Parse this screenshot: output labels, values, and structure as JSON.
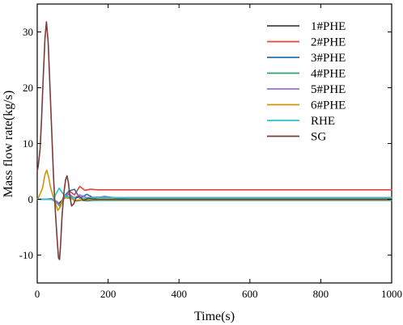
{
  "chart_data": {
    "type": "line",
    "xlabel": "Time(s)",
    "ylabel": "Mass flow rate(kg/s)",
    "xlim": [
      0,
      1000
    ],
    "ylim": [
      -15,
      35
    ],
    "xticks": [
      0,
      200,
      400,
      600,
      800,
      1000
    ],
    "yticks": [
      -10,
      0,
      10,
      20,
      30
    ],
    "grid": false,
    "legend_position": "top-right",
    "series": [
      {
        "name": "1#PHE",
        "color": "#444444",
        "x": [
          0,
          20,
          40,
          50,
          60,
          70,
          80,
          95,
          110,
          130,
          150,
          180,
          220,
          300,
          500,
          1000
        ],
        "y": [
          0,
          0,
          0.1,
          -0.3,
          -0.8,
          -0.2,
          0.6,
          0.2,
          -0.3,
          -0.1,
          0,
          0,
          0,
          0,
          0,
          0
        ]
      },
      {
        "name": "2#PHE",
        "color": "#e8413c",
        "x": [
          0,
          20,
          40,
          55,
          65,
          75,
          90,
          105,
          120,
          135,
          150,
          170,
          200,
          300,
          500,
          1000
        ],
        "y": [
          0,
          0,
          0,
          -0.5,
          -1.2,
          0.3,
          1.5,
          0.8,
          2.3,
          1.6,
          1.8,
          1.7,
          1.7,
          1.7,
          1.7,
          1.7
        ]
      },
      {
        "name": "3#PHE",
        "color": "#2d6ea8",
        "x": [
          0,
          20,
          40,
          55,
          65,
          75,
          90,
          105,
          120,
          140,
          160,
          190,
          230,
          260,
          300,
          1000
        ],
        "y": [
          0,
          0,
          0,
          -0.4,
          -1.0,
          0.5,
          1.5,
          1.8,
          0.2,
          0.9,
          0.2,
          0.5,
          0.2,
          0.3,
          0.3,
          0.3
        ]
      },
      {
        "name": "4#PHE",
        "color": "#3a9e6b",
        "x": [
          0,
          20,
          40,
          55,
          65,
          75,
          90,
          105,
          120,
          140,
          160,
          200,
          300,
          500,
          1000
        ],
        "y": [
          0,
          0,
          0,
          -0.6,
          -1.4,
          0.4,
          0.9,
          -0.3,
          -0.1,
          -0.3,
          -0.2,
          -0.2,
          -0.2,
          -0.2,
          -0.2
        ]
      },
      {
        "name": "5#PHE",
        "color": "#9b6fd6",
        "x": [
          0,
          20,
          40,
          55,
          65,
          75,
          90,
          105,
          120,
          140,
          170,
          220,
          300,
          1000
        ],
        "y": [
          0,
          0,
          0,
          -0.5,
          -1.2,
          0.5,
          1.0,
          0.2,
          0.8,
          0.3,
          0.4,
          0.3,
          0.3,
          0.3
        ]
      },
      {
        "name": "6#PHE",
        "color": "#c8960f",
        "x": [
          0,
          5,
          15,
          22,
          27,
          32,
          38,
          45,
          52,
          58,
          63,
          70,
          80,
          95,
          110,
          130,
          160,
          200,
          300,
          1000
        ],
        "y": [
          0,
          0.5,
          2.0,
          4.5,
          5.2,
          4.0,
          2.0,
          0.5,
          -0.8,
          -2.0,
          -1.6,
          -0.3,
          0.3,
          0.1,
          -0.2,
          0,
          0,
          0,
          0,
          0
        ]
      },
      {
        "name": "RHE",
        "color": "#29c4cc",
        "x": [
          0,
          30,
          45,
          55,
          62,
          70,
          80,
          95,
          110,
          130,
          160,
          200,
          300,
          500,
          1000
        ],
        "y": [
          0,
          0,
          0,
          1.2,
          2.0,
          1.2,
          0.5,
          0.2,
          0.4,
          0.2,
          0.3,
          0.3,
          0.3,
          0.3,
          0.3
        ]
      },
      {
        "name": "SG",
        "color": "#7b3b38",
        "x": [
          0,
          3,
          8,
          12,
          17,
          22,
          26,
          31,
          36,
          41,
          46,
          51,
          56,
          60,
          63,
          66,
          70,
          75,
          80,
          84,
          88,
          92,
          97,
          103,
          110,
          120,
          130,
          145,
          160,
          180,
          220,
          300,
          1000
        ],
        "y": [
          5,
          6,
          9,
          14,
          22,
          29,
          31.8,
          28,
          20,
          12,
          4,
          -2,
          -7,
          -10.5,
          -10.8,
          -8,
          -3,
          1,
          3.5,
          4.2,
          3,
          0.5,
          -1.2,
          -0.8,
          0.3,
          0.5,
          -0.2,
          0.2,
          0,
          0,
          0,
          0,
          0
        ]
      }
    ]
  }
}
